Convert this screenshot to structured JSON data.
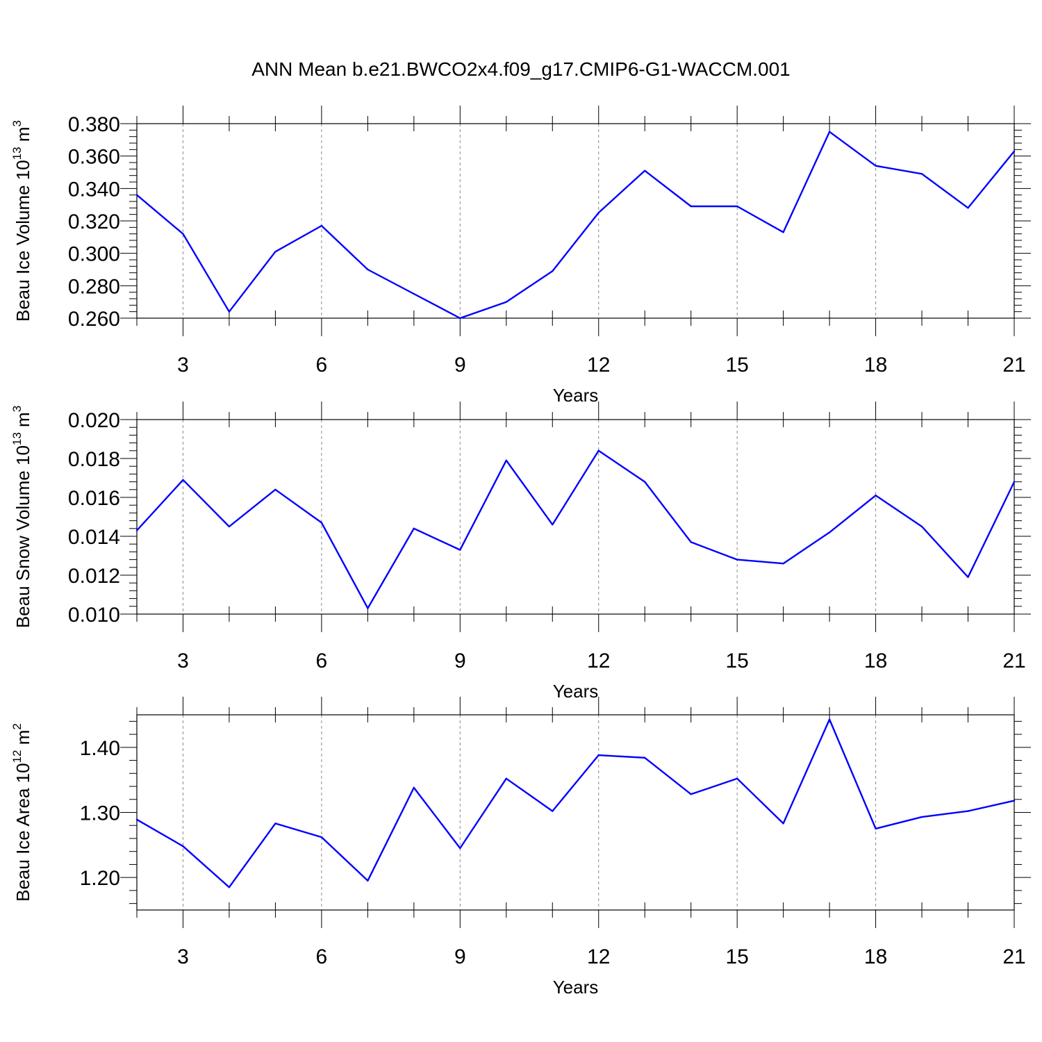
{
  "title": "ANN Mean b.e21.BWCO2x4.f09_g17.CMIP6-G1-WACCM.001",
  "colors": {
    "line": "#0000ff",
    "axis": "#000000",
    "grid": "#888888"
  },
  "chart_data": [
    {
      "type": "line",
      "ylabel": {
        "main": "Beau Ice Volume 10",
        "sup": "13",
        "unit": " m",
        "unit_sup": "3"
      },
      "xlabel": "Years",
      "xlim": [
        2,
        21
      ],
      "ylim": [
        0.26,
        0.38
      ],
      "xticks": [
        3,
        6,
        9,
        12,
        15,
        18,
        21
      ],
      "yticks": [
        "0.260",
        "0.280",
        "0.300",
        "0.320",
        "0.340",
        "0.360",
        "0.380"
      ],
      "grid": "vertical dashed at major x ticks",
      "x": [
        2,
        3,
        4,
        5,
        6,
        7,
        8,
        9,
        10,
        11,
        12,
        13,
        14,
        15,
        16,
        17,
        18,
        19,
        20,
        21
      ],
      "values": [
        0.336,
        0.312,
        0.264,
        0.301,
        0.317,
        0.29,
        0.275,
        0.26,
        0.27,
        0.289,
        0.325,
        0.351,
        0.329,
        0.329,
        0.313,
        0.375,
        0.354,
        0.349,
        0.328,
        0.363
      ]
    },
    {
      "type": "line",
      "ylabel": {
        "main": "Beau Snow Volume 10",
        "sup": "13",
        "unit": " m",
        "unit_sup": "3"
      },
      "xlabel": "Years",
      "xlim": [
        2,
        21
      ],
      "ylim": [
        0.01,
        0.02
      ],
      "xticks": [
        3,
        6,
        9,
        12,
        15,
        18,
        21
      ],
      "yticks": [
        "0.010",
        "0.012",
        "0.014",
        "0.016",
        "0.018",
        "0.020"
      ],
      "grid": "vertical dashed at major x ticks",
      "x": [
        2,
        3,
        4,
        5,
        6,
        7,
        8,
        9,
        10,
        11,
        12,
        13,
        14,
        15,
        16,
        17,
        18,
        19,
        20,
        21
      ],
      "values": [
        0.0143,
        0.0169,
        0.0145,
        0.0164,
        0.0147,
        0.0103,
        0.0144,
        0.0133,
        0.0179,
        0.0146,
        0.0184,
        0.0168,
        0.0137,
        0.0128,
        0.0126,
        0.0142,
        0.0161,
        0.0145,
        0.0119,
        0.0168
      ]
    },
    {
      "type": "line",
      "ylabel": {
        "main": "Beau Ice Area 10",
        "sup": "12",
        "unit": " m",
        "unit_sup": "2"
      },
      "xlabel": "Years",
      "xlim": [
        2,
        21
      ],
      "ylim": [
        1.15,
        1.45
      ],
      "xticks": [
        3,
        6,
        9,
        12,
        15,
        18,
        21
      ],
      "yticks": [
        "1.20",
        "1.30",
        "1.40"
      ],
      "grid": "vertical dashed at major x ticks",
      "x": [
        2,
        3,
        4,
        5,
        6,
        7,
        8,
        9,
        10,
        11,
        12,
        13,
        14,
        15,
        16,
        17,
        18,
        19,
        20,
        21
      ],
      "values": [
        1.289,
        1.248,
        1.185,
        1.283,
        1.262,
        1.195,
        1.338,
        1.245,
        1.352,
        1.302,
        1.388,
        1.384,
        1.328,
        1.352,
        1.283,
        1.443,
        1.275,
        1.293,
        1.302,
        1.318
      ]
    }
  ]
}
